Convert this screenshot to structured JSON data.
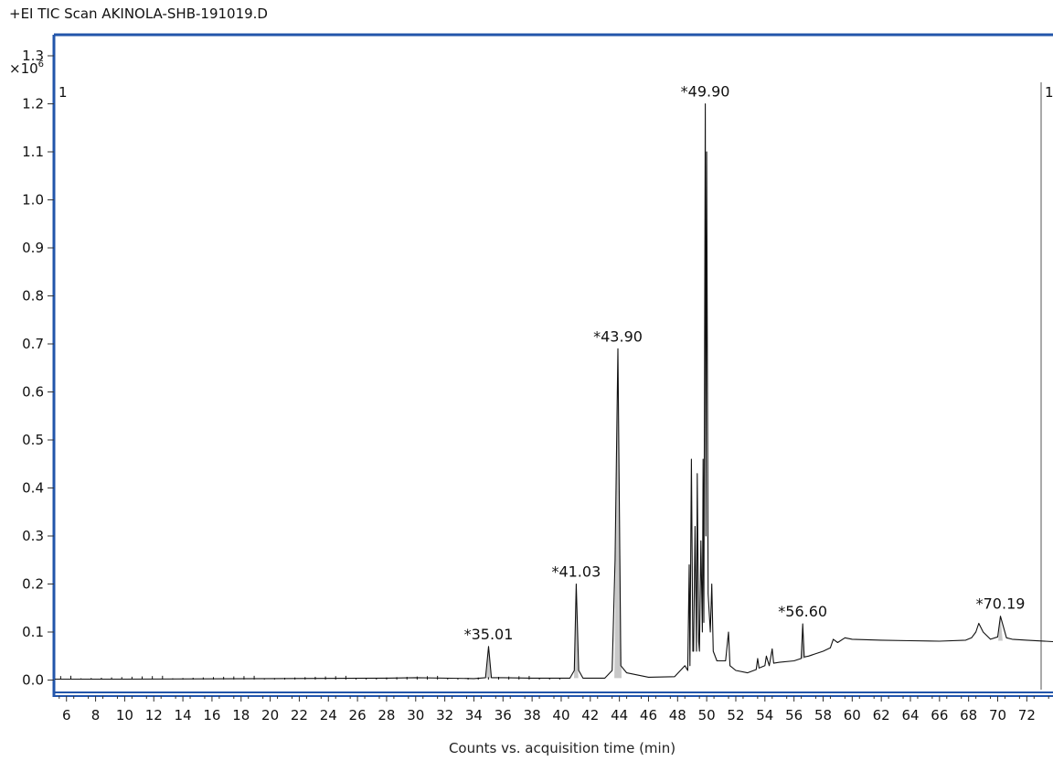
{
  "title": "+EI TIC Scan AKINOLA-SHB-191019.D",
  "chart_data": {
    "type": "line",
    "title": "+EI TIC Scan AKINOLA-SHB-191019.D",
    "xlabel": "Counts vs. acquisition time (min)",
    "ylabel": "",
    "y_multiplier": "×10",
    "y_multiplier_exp": "6",
    "xlim": [
      5.2,
      73.8
    ],
    "ylim": [
      -0.02,
      1.34
    ],
    "x_ticks": [
      6,
      8,
      10,
      12,
      14,
      16,
      18,
      20,
      22,
      24,
      26,
      28,
      30,
      32,
      34,
      36,
      38,
      40,
      42,
      44,
      46,
      48,
      50,
      52,
      54,
      56,
      58,
      60,
      62,
      64,
      66,
      68,
      70,
      72
    ],
    "y_ticks": [
      "0.0",
      "0.1",
      "0.2",
      "0.3",
      "0.4",
      "0.5",
      "0.6",
      "0.7",
      "0.8",
      "0.9",
      "1.0",
      "1.1",
      "1.2",
      "1.3"
    ],
    "marker_label_left": "1",
    "marker_label_right": "1",
    "peaks": [
      {
        "time": 35.01,
        "height": 0.07,
        "label": "*35.01"
      },
      {
        "time": 41.03,
        "height": 0.2,
        "label": "*41.03"
      },
      {
        "time": 43.9,
        "height": 0.69,
        "label": "*43.90"
      },
      {
        "time": 49.9,
        "height": 1.2,
        "label": "*49.90"
      },
      {
        "time": 56.6,
        "height": 0.117,
        "label": "*56.60"
      },
      {
        "time": 70.19,
        "height": 0.133,
        "label": "*70.19"
      }
    ],
    "series": [
      {
        "values": [
          [
            5.2,
            0.002
          ],
          [
            10,
            0.002
          ],
          [
            20,
            0.003
          ],
          [
            28,
            0.004
          ],
          [
            30,
            0.005
          ],
          [
            34,
            0.003
          ],
          [
            34.8,
            0.005
          ],
          [
            35.01,
            0.07
          ],
          [
            35.2,
            0.005
          ],
          [
            36,
            0.005
          ],
          [
            38,
            0.004
          ],
          [
            40.6,
            0.004
          ],
          [
            40.9,
            0.02
          ],
          [
            41.03,
            0.2
          ],
          [
            41.2,
            0.02
          ],
          [
            41.5,
            0.004
          ],
          [
            43,
            0.004
          ],
          [
            43.5,
            0.02
          ],
          [
            43.7,
            0.25
          ],
          [
            43.9,
            0.69
          ],
          [
            44.1,
            0.03
          ],
          [
            44.5,
            0.015
          ],
          [
            46,
            0.006
          ],
          [
            47.8,
            0.007
          ],
          [
            48.5,
            0.03
          ],
          [
            48.7,
            0.02
          ],
          [
            48.8,
            0.24
          ],
          [
            48.85,
            0.03
          ],
          [
            48.95,
            0.46
          ],
          [
            49.05,
            0.06
          ],
          [
            49.1,
            0.06
          ],
          [
            49.2,
            0.32
          ],
          [
            49.3,
            0.06
          ],
          [
            49.35,
            0.43
          ],
          [
            49.45,
            0.08
          ],
          [
            49.5,
            0.06
          ],
          [
            49.6,
            0.29
          ],
          [
            49.7,
            0.1
          ],
          [
            49.75,
            0.46
          ],
          [
            49.8,
            0.12
          ],
          [
            49.9,
            1.2
          ],
          [
            49.95,
            0.3
          ],
          [
            50.0,
            1.1
          ],
          [
            50.1,
            0.18
          ],
          [
            50.25,
            0.1
          ],
          [
            50.35,
            0.2
          ],
          [
            50.45,
            0.06
          ],
          [
            50.7,
            0.04
          ],
          [
            51.3,
            0.04
          ],
          [
            51.5,
            0.1
          ],
          [
            51.6,
            0.03
          ],
          [
            52,
            0.02
          ],
          [
            52.8,
            0.015
          ],
          [
            53.4,
            0.022
          ],
          [
            53.5,
            0.045
          ],
          [
            53.6,
            0.025
          ],
          [
            54,
            0.03
          ],
          [
            54.1,
            0.05
          ],
          [
            54.3,
            0.03
          ],
          [
            54.5,
            0.065
          ],
          [
            54.6,
            0.035
          ],
          [
            55,
            0.037
          ],
          [
            56,
            0.04
          ],
          [
            56.5,
            0.045
          ],
          [
            56.6,
            0.117
          ],
          [
            56.7,
            0.048
          ],
          [
            57,
            0.05
          ],
          [
            58,
            0.06
          ],
          [
            58.5,
            0.067
          ],
          [
            58.7,
            0.085
          ],
          [
            59,
            0.078
          ],
          [
            59.5,
            0.088
          ],
          [
            60,
            0.085
          ],
          [
            62,
            0.083
          ],
          [
            64,
            0.082
          ],
          [
            66,
            0.081
          ],
          [
            67.8,
            0.083
          ],
          [
            68.2,
            0.088
          ],
          [
            68.5,
            0.1
          ],
          [
            68.7,
            0.118
          ],
          [
            69.0,
            0.1
          ],
          [
            69.5,
            0.085
          ],
          [
            70,
            0.09
          ],
          [
            70.19,
            0.133
          ],
          [
            70.6,
            0.088
          ],
          [
            71,
            0.085
          ],
          [
            72,
            0.083
          ],
          [
            73.8,
            0.08
          ]
        ]
      }
    ]
  }
}
